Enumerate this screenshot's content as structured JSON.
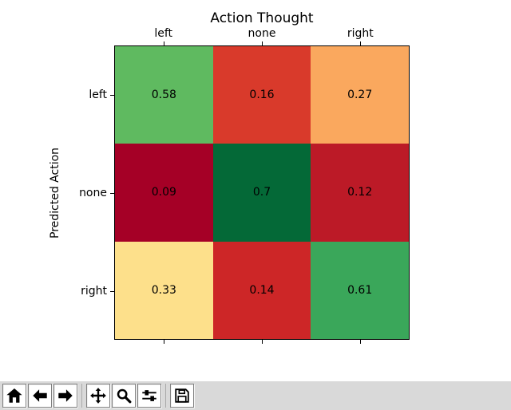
{
  "chart_data": {
    "type": "heatmap",
    "title": "Action Thought",
    "xlabel": "",
    "ylabel": "Predicted Action",
    "x_categories": [
      "left",
      "none",
      "right"
    ],
    "y_categories": [
      "left",
      "none",
      "right"
    ],
    "values": [
      [
        0.58,
        0.16,
        0.27
      ],
      [
        0.09,
        0.7,
        0.12
      ],
      [
        0.33,
        0.14,
        0.61
      ]
    ],
    "cell_labels": [
      [
        "0.58",
        "0.16",
        "0.27"
      ],
      [
        "0.09",
        "0.7",
        "0.12"
      ],
      [
        "0.33",
        "0.14",
        "0.61"
      ]
    ],
    "cell_colors": [
      [
        "#5fba60",
        "#d93a2b",
        "#faa85e"
      ],
      [
        "#a50026",
        "#046937",
        "#bc1a27"
      ],
      [
        "#fde08b",
        "#cd2627",
        "#3aa75a"
      ]
    ],
    "xtick_position": "top",
    "grid": false,
    "legend": "none"
  },
  "colors": {
    "canvas_background": "#ffffff",
    "toolbar_background": "#d9d9d9",
    "axes_border": "#000000",
    "text": "#000000"
  },
  "toolbar": {
    "buttons": [
      {
        "name": "home",
        "icon": "home-icon",
        "tooltip": "Home"
      },
      {
        "name": "back",
        "icon": "back-arrow-icon",
        "tooltip": "Back"
      },
      {
        "name": "forward",
        "icon": "forward-arrow-icon",
        "tooltip": "Forward"
      },
      {
        "name": "pan",
        "icon": "pan-icon",
        "tooltip": "Pan"
      },
      {
        "name": "zoom",
        "icon": "zoom-icon",
        "tooltip": "Zoom"
      },
      {
        "name": "subplots",
        "icon": "subplots-icon",
        "tooltip": "Subplots"
      },
      {
        "name": "save",
        "icon": "save-icon",
        "tooltip": "Save"
      }
    ],
    "separators_after": [
      2,
      5
    ]
  }
}
